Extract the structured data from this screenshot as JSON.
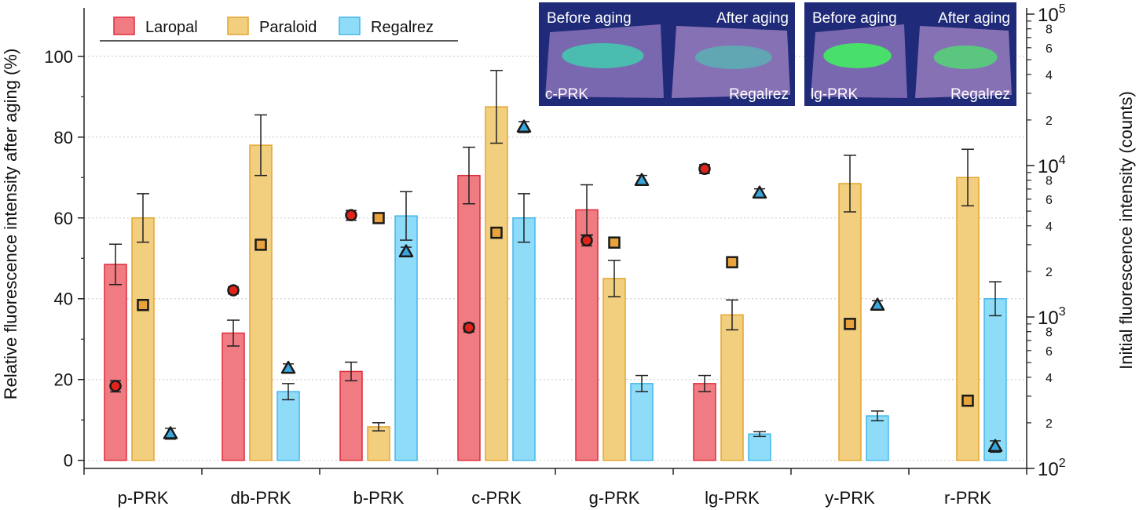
{
  "chart_data": {
    "type": "bar",
    "categories": [
      "p-PRK",
      "db-PRK",
      "b-PRK",
      "c-PRK",
      "g-PRK",
      "lg-PRK",
      "y-PRK",
      "r-PRK"
    ],
    "y_left": {
      "label": "Relative fluorescence intensity after aging (%)",
      "lim": [
        -2,
        112
      ],
      "ticks": [
        0,
        20,
        40,
        60,
        80,
        100
      ],
      "grid": true
    },
    "y_right": {
      "label": "Initial fluorescence intensity (counts)",
      "scale": "log",
      "lim": [
        100,
        110000
      ],
      "major_ticks": [
        {
          "value": 100,
          "base": "10",
          "exp": "2"
        },
        {
          "value": 1000,
          "base": "10",
          "exp": "3"
        },
        {
          "value": 10000,
          "base": "10",
          "exp": "4"
        },
        {
          "value": 100000,
          "base": "10",
          "exp": "5"
        }
      ],
      "minor_labels": [
        "2",
        "4",
        "6",
        "8"
      ]
    },
    "colors": {
      "Laropal": {
        "fill": "#f07b82",
        "stroke": "#dd2d3c",
        "marker": "#e0241a"
      },
      "Paraloid": {
        "fill": "#f2cf7e",
        "stroke": "#e3a52e",
        "marker": "#e9a33c"
      },
      "Regalrez": {
        "fill": "#8fdcf8",
        "stroke": "#43b6ea",
        "marker": "#3aa6dc"
      }
    },
    "bars": [
      {
        "name": "Laropal",
        "values": [
          48.5,
          31.5,
          22,
          70.5,
          62,
          19,
          null,
          null
        ],
        "errors": [
          5,
          3.2,
          2.3,
          7,
          6.2,
          2,
          null,
          null
        ]
      },
      {
        "name": "Paraloid",
        "values": [
          60,
          78,
          8.3,
          87.5,
          45,
          36,
          68.5,
          70
        ],
        "errors": [
          6,
          7.5,
          1,
          9,
          4.5,
          3.7,
          7,
          7
        ]
      },
      {
        "name": "Regalrez",
        "values": [
          null,
          17,
          60.5,
          60,
          19,
          6.5,
          11,
          40
        ],
        "errors": [
          null,
          2,
          6,
          6,
          2,
          0.6,
          1.2,
          4.2
        ]
      }
    ],
    "initial_intensity_points": [
      {
        "name": "Laropal",
        "marker": "circle",
        "values": [
          350,
          1500,
          4700,
          850,
          3200,
          9500,
          null,
          null
        ],
        "errors": [
          30,
          80,
          350,
          55,
          250,
          650,
          null,
          null
        ]
      },
      {
        "name": "Paraloid",
        "marker": "square",
        "values": [
          1200,
          3000,
          4500,
          3600,
          3100,
          2300,
          900,
          280
        ],
        "errors": [
          null,
          null,
          null,
          null,
          null,
          null,
          null,
          15
        ]
      },
      {
        "name": "Regalrez",
        "marker": "triangle",
        "values": [
          170,
          460,
          2700,
          18000,
          8000,
          6600,
          1200,
          140
        ],
        "errors": [
          14,
          30,
          190,
          1500,
          600,
          420,
          80,
          12
        ]
      }
    ],
    "legend": {
      "position": "top-left",
      "entries": [
        "Laropal",
        "Paraloid",
        "Regalrez"
      ]
    }
  },
  "photos": [
    {
      "label_top_left": "Before aging",
      "label_top_right": "After aging",
      "label_bottom_left": "c-PRK",
      "label_bottom_right": "Regalrez",
      "glow": "#3fd3b0"
    },
    {
      "label_top_left": "Before aging",
      "label_top_right": "After aging",
      "label_bottom_left": "lg-PRK",
      "label_bottom_right": "Regalrez",
      "glow": "#3cff5a"
    }
  ]
}
